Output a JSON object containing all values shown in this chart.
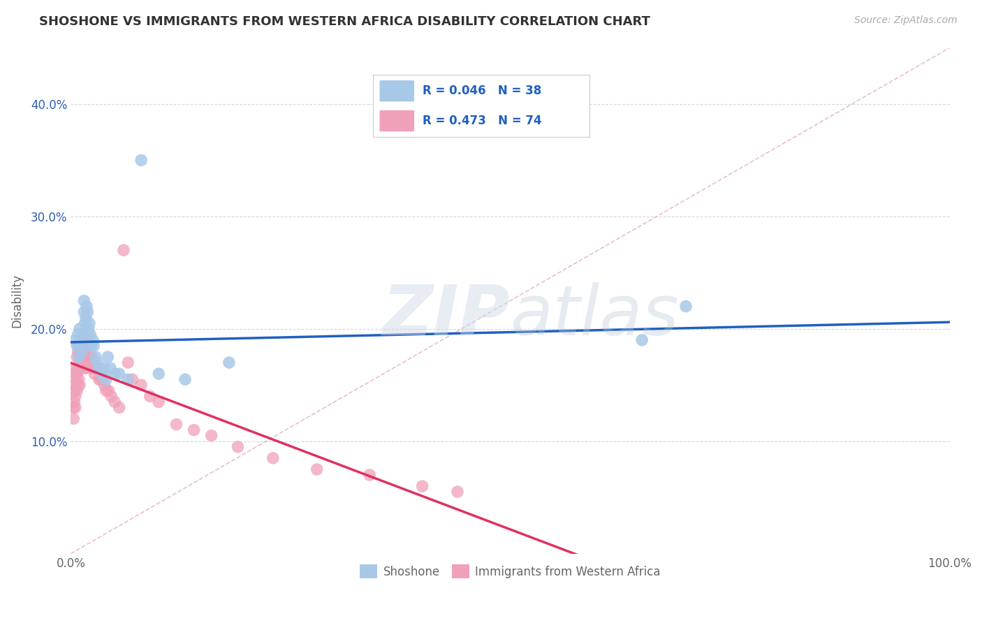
{
  "title": "SHOSHONE VS IMMIGRANTS FROM WESTERN AFRICA DISABILITY CORRELATION CHART",
  "source": "Source: ZipAtlas.com",
  "ylabel": "Disability",
  "xlim": [
    0.0,
    1.0
  ],
  "ylim": [
    0.0,
    0.45
  ],
  "shoshone_color": "#a8c8e8",
  "immigrant_color": "#f0a0b8",
  "shoshone_line_color": "#2060c0",
  "immigrant_line_color": "#e03060",
  "diagonal_color": "#e0b0c0",
  "background_color": "#ffffff",
  "legend_r1": "R = 0.046",
  "legend_n1": "N = 38",
  "legend_r2": "R = 0.473",
  "legend_n2": "N = 74",
  "shoshone_x": [
    0.005,
    0.007,
    0.008,
    0.009,
    0.01,
    0.01,
    0.011,
    0.012,
    0.013,
    0.015,
    0.015,
    0.016,
    0.017,
    0.018,
    0.019,
    0.02,
    0.021,
    0.022,
    0.023,
    0.025,
    0.026,
    0.028,
    0.03,
    0.032,
    0.035,
    0.038,
    0.04,
    0.042,
    0.045,
    0.05,
    0.055,
    0.065,
    0.08,
    0.1,
    0.13,
    0.18,
    0.65,
    0.7
  ],
  "shoshone_y": [
    0.19,
    0.185,
    0.195,
    0.175,
    0.2,
    0.185,
    0.19,
    0.195,
    0.18,
    0.225,
    0.215,
    0.205,
    0.21,
    0.22,
    0.215,
    0.2,
    0.205,
    0.195,
    0.185,
    0.19,
    0.185,
    0.175,
    0.17,
    0.165,
    0.16,
    0.165,
    0.155,
    0.175,
    0.165,
    0.16,
    0.16,
    0.155,
    0.35,
    0.16,
    0.155,
    0.17,
    0.19,
    0.22
  ],
  "immigrant_x": [
    0.003,
    0.003,
    0.004,
    0.004,
    0.005,
    0.005,
    0.005,
    0.005,
    0.006,
    0.006,
    0.007,
    0.007,
    0.007,
    0.008,
    0.008,
    0.008,
    0.009,
    0.009,
    0.009,
    0.01,
    0.01,
    0.01,
    0.01,
    0.011,
    0.011,
    0.012,
    0.012,
    0.013,
    0.013,
    0.014,
    0.014,
    0.015,
    0.015,
    0.015,
    0.016,
    0.016,
    0.017,
    0.017,
    0.018,
    0.019,
    0.02,
    0.021,
    0.022,
    0.023,
    0.024,
    0.025,
    0.026,
    0.027,
    0.028,
    0.03,
    0.032,
    0.034,
    0.036,
    0.038,
    0.04,
    0.043,
    0.046,
    0.05,
    0.055,
    0.06,
    0.065,
    0.07,
    0.08,
    0.09,
    0.1,
    0.12,
    0.14,
    0.16,
    0.19,
    0.23,
    0.28,
    0.34,
    0.4,
    0.44
  ],
  "immigrant_y": [
    0.13,
    0.12,
    0.145,
    0.135,
    0.16,
    0.15,
    0.14,
    0.13,
    0.165,
    0.155,
    0.175,
    0.16,
    0.145,
    0.18,
    0.165,
    0.15,
    0.185,
    0.17,
    0.155,
    0.19,
    0.18,
    0.165,
    0.15,
    0.185,
    0.17,
    0.19,
    0.175,
    0.185,
    0.17,
    0.19,
    0.175,
    0.195,
    0.18,
    0.165,
    0.19,
    0.175,
    0.185,
    0.165,
    0.18,
    0.17,
    0.175,
    0.17,
    0.175,
    0.165,
    0.175,
    0.17,
    0.165,
    0.16,
    0.165,
    0.165,
    0.155,
    0.155,
    0.155,
    0.15,
    0.145,
    0.145,
    0.14,
    0.135,
    0.13,
    0.27,
    0.17,
    0.155,
    0.15,
    0.14,
    0.135,
    0.115,
    0.11,
    0.105,
    0.095,
    0.085,
    0.075,
    0.07,
    0.06,
    0.055
  ]
}
